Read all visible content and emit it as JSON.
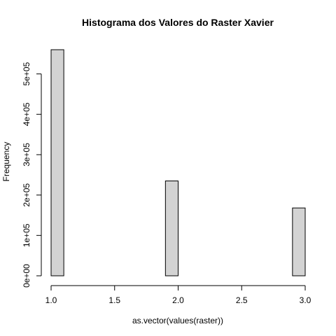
{
  "chart_data": {
    "type": "bar",
    "title": "Histograma dos Valores do Raster Xavier",
    "xlabel": "as.vector(values(raster))",
    "ylabel": "Frequency",
    "bins": [
      {
        "x0": 1.0,
        "x1": 1.1,
        "value": 560000
      },
      {
        "x0": 1.1,
        "x1": 1.2,
        "value": 0
      },
      {
        "x0": 1.2,
        "x1": 1.3,
        "value": 0
      },
      {
        "x0": 1.3,
        "x1": 1.4,
        "value": 0
      },
      {
        "x0": 1.4,
        "x1": 1.5,
        "value": 0
      },
      {
        "x0": 1.5,
        "x1": 1.6,
        "value": 0
      },
      {
        "x0": 1.6,
        "x1": 1.7,
        "value": 0
      },
      {
        "x0": 1.7,
        "x1": 1.8,
        "value": 0
      },
      {
        "x0": 1.8,
        "x1": 1.9,
        "value": 0
      },
      {
        "x0": 1.9,
        "x1": 2.0,
        "value": 235000
      },
      {
        "x0": 2.0,
        "x1": 2.1,
        "value": 0
      },
      {
        "x0": 2.1,
        "x1": 2.2,
        "value": 0
      },
      {
        "x0": 2.2,
        "x1": 2.3,
        "value": 0
      },
      {
        "x0": 2.3,
        "x1": 2.4,
        "value": 0
      },
      {
        "x0": 2.4,
        "x1": 2.5,
        "value": 0
      },
      {
        "x0": 2.5,
        "x1": 2.6,
        "value": 0
      },
      {
        "x0": 2.6,
        "x1": 2.7,
        "value": 0
      },
      {
        "x0": 2.7,
        "x1": 2.8,
        "value": 0
      },
      {
        "x0": 2.8,
        "x1": 2.9,
        "value": 0
      },
      {
        "x0": 2.9,
        "x1": 3.0,
        "value": 168000
      }
    ],
    "xlim": [
      1.0,
      3.0
    ],
    "ylim": [
      0,
      560000
    ],
    "x_ticks": [
      {
        "value": 1.0,
        "label": "1.0"
      },
      {
        "value": 1.5,
        "label": "1.5"
      },
      {
        "value": 2.0,
        "label": "2.0"
      },
      {
        "value": 2.5,
        "label": "2.5"
      },
      {
        "value": 3.0,
        "label": "3.0"
      }
    ],
    "y_ticks": [
      {
        "value": 0,
        "label": "0e+00"
      },
      {
        "value": 100000,
        "label": "1e+05"
      },
      {
        "value": 200000,
        "label": "2e+05"
      },
      {
        "value": 300000,
        "label": "3e+05"
      },
      {
        "value": 400000,
        "label": "4e+05"
      },
      {
        "value": 500000,
        "label": "5e+05"
      }
    ],
    "grid": false,
    "colors": {
      "bar_fill": "#d3d3d3",
      "bar_stroke": "#000000",
      "axis": "#000000",
      "background": "#ffffff"
    }
  }
}
